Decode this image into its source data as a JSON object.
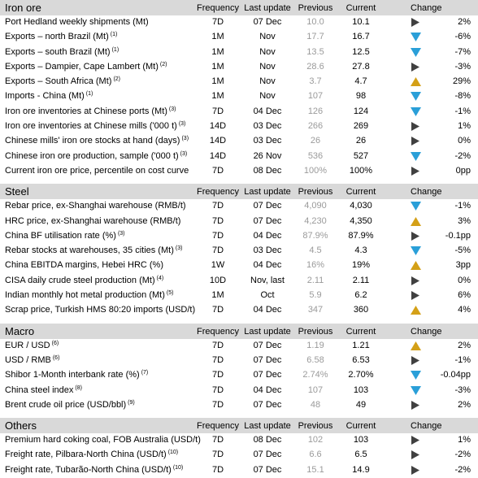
{
  "columns": {
    "frequency": "Frequency",
    "last_update": "Last update",
    "previous": "Previous",
    "current": "Current",
    "change": "Change"
  },
  "colors": {
    "up": "#d4a017",
    "down": "#2a9fd8",
    "flat": "#404040",
    "header_bg": "#d9d9d9",
    "prev_text": "#9a9a9a"
  },
  "sections": [
    {
      "title": "Iron ore",
      "rows": [
        {
          "name": "Port Hedland weekly shipments (Mt)",
          "note": "",
          "freq": "7D",
          "upd": "07 Dec",
          "prev": "10.0",
          "cur": "10.1",
          "dir": "flat",
          "chg": "2%"
        },
        {
          "name": "Exports – north Brazil (Mt)",
          "note": "(1)",
          "freq": "1M",
          "upd": "Nov",
          "prev": "17.7",
          "cur": "16.7",
          "dir": "down",
          "chg": "-6%"
        },
        {
          "name": "Exports – south Brazil (Mt)",
          "note": "(1)",
          "freq": "1M",
          "upd": "Nov",
          "prev": "13.5",
          "cur": "12.5",
          "dir": "down",
          "chg": "-7%"
        },
        {
          "name": "Exports – Dampier, Cape Lambert (Mt)",
          "note": "(2)",
          "freq": "1M",
          "upd": "Nov",
          "prev": "28.6",
          "cur": "27.8",
          "dir": "flat",
          "chg": "-3%"
        },
        {
          "name": "Exports – South Africa (Mt)",
          "note": "(2)",
          "freq": "1M",
          "upd": "Nov",
          "prev": "3.7",
          "cur": "4.7",
          "dir": "up",
          "chg": "29%"
        },
        {
          "name": "Imports - China (Mt)",
          "note": "(1)",
          "freq": "1M",
          "upd": "Nov",
          "prev": "107",
          "cur": "98",
          "dir": "down",
          "chg": "-8%"
        },
        {
          "name": "Iron ore inventories at Chinese ports (Mt)",
          "note": "(3)",
          "freq": "7D",
          "upd": "04 Dec",
          "prev": "126",
          "cur": "124",
          "dir": "down",
          "chg": "-1%"
        },
        {
          "name": "Iron ore inventories at Chinese mills ('000 t)",
          "note": "(3)",
          "freq": "14D",
          "upd": "03 Dec",
          "prev": "266",
          "cur": "269",
          "dir": "flat",
          "chg": "1%"
        },
        {
          "name": "Chinese mills' iron ore stocks at hand (days)",
          "note": "(3)",
          "freq": "14D",
          "upd": "03 Dec",
          "prev": "26",
          "cur": "26",
          "dir": "flat",
          "chg": "0%"
        },
        {
          "name": "Chinese iron ore production, sample ('000 t)",
          "note": "(3)",
          "freq": "14D",
          "upd": "26 Nov",
          "prev": "536",
          "cur": "527",
          "dir": "down",
          "chg": "-2%"
        },
        {
          "name": "Current iron ore price, percentile on cost curve",
          "note": "",
          "freq": "7D",
          "upd": "08 Dec",
          "prev": "100%",
          "cur": "100%",
          "dir": "flat",
          "chg": "0pp"
        }
      ]
    },
    {
      "title": "Steel",
      "rows": [
        {
          "name": "Rebar price, ex-Shanghai warehouse (RMB/t)",
          "note": "",
          "freq": "7D",
          "upd": "07 Dec",
          "prev": "4,090",
          "cur": "4,030",
          "dir": "down",
          "chg": "-1%"
        },
        {
          "name": "HRC price, ex-Shanghai warehouse (RMB/t)",
          "note": "",
          "freq": "7D",
          "upd": "07 Dec",
          "prev": "4,230",
          "cur": "4,350",
          "dir": "up",
          "chg": "3%"
        },
        {
          "name": "China BF utilisation rate (%)",
          "note": "(3)",
          "freq": "7D",
          "upd": "04 Dec",
          "prev": "87.9%",
          "cur": "87.9%",
          "dir": "flat",
          "chg": "-0.1pp"
        },
        {
          "name": "Rebar stocks at warehouses, 35 cities (Mt)",
          "note": "(3)",
          "freq": "7D",
          "upd": "03 Dec",
          "prev": "4.5",
          "cur": "4.3",
          "dir": "down",
          "chg": "-5%"
        },
        {
          "name": "China EBITDA margins, Hebei HRC (%)",
          "note": "",
          "freq": "1W",
          "upd": "04 Dec",
          "prev": "16%",
          "cur": "19%",
          "dir": "up",
          "chg": "3pp"
        },
        {
          "name": "CISA daily crude steel production (Mt)",
          "note": "(4)",
          "freq": "10D",
          "upd": "Nov, last",
          "prev": "2.11",
          "cur": "2.11",
          "dir": "flat",
          "chg": "0%"
        },
        {
          "name": "Indian monthly hot metal production (Mt)",
          "note": "(5)",
          "freq": "1M",
          "upd": "Oct",
          "prev": "5.9",
          "cur": "6.2",
          "dir": "flat",
          "chg": "6%"
        },
        {
          "name": "Scrap price, Turkish HMS 80:20 imports (USD/t)",
          "note": "",
          "freq": "7D",
          "upd": "04 Dec",
          "prev": "347",
          "cur": "360",
          "dir": "up",
          "chg": "4%"
        }
      ]
    },
    {
      "title": "Macro",
      "rows": [
        {
          "name": "EUR / USD",
          "note": "(6)",
          "freq": "7D",
          "upd": "07 Dec",
          "prev": "1.19",
          "cur": "1.21",
          "dir": "up",
          "chg": "2%"
        },
        {
          "name": "USD / RMB",
          "note": "(6)",
          "freq": "7D",
          "upd": "07 Dec",
          "prev": "6.58",
          "cur": "6.53",
          "dir": "flat",
          "chg": "-1%"
        },
        {
          "name": "Shibor 1-Month interbank rate (%)",
          "note": "(7)",
          "freq": "7D",
          "upd": "07 Dec",
          "prev": "2.74%",
          "cur": "2.70%",
          "dir": "down",
          "chg": "-0.04pp"
        },
        {
          "name": "China steel index",
          "note": "(8)",
          "freq": "7D",
          "upd": "04 Dec",
          "prev": "107",
          "cur": "103",
          "dir": "down",
          "chg": "-3%"
        },
        {
          "name": "Brent crude oil price (USD/bbl)",
          "note": "(9)",
          "freq": "7D",
          "upd": "07 Dec",
          "prev": "48",
          "cur": "49",
          "dir": "flat",
          "chg": "2%"
        }
      ]
    },
    {
      "title": "Others",
      "rows": [
        {
          "name": "Premium hard coking coal, FOB Australia (USD/t)",
          "note": "",
          "freq": "7D",
          "upd": "08 Dec",
          "prev": "102",
          "cur": "103",
          "dir": "flat",
          "chg": "1%"
        },
        {
          "name": "Freight rate, Pilbara-North China (USD/t)",
          "note": "(10)",
          "freq": "7D",
          "upd": "07 Dec",
          "prev": "6.6",
          "cur": "6.5",
          "dir": "flat",
          "chg": "-2%"
        },
        {
          "name": "Freight rate, Tubarão-North China (USD/t)",
          "note": "(10)",
          "freq": "7D",
          "upd": "07 Dec",
          "prev": "15.1",
          "cur": "14.9",
          "dir": "flat",
          "chg": "-2%"
        }
      ]
    }
  ]
}
